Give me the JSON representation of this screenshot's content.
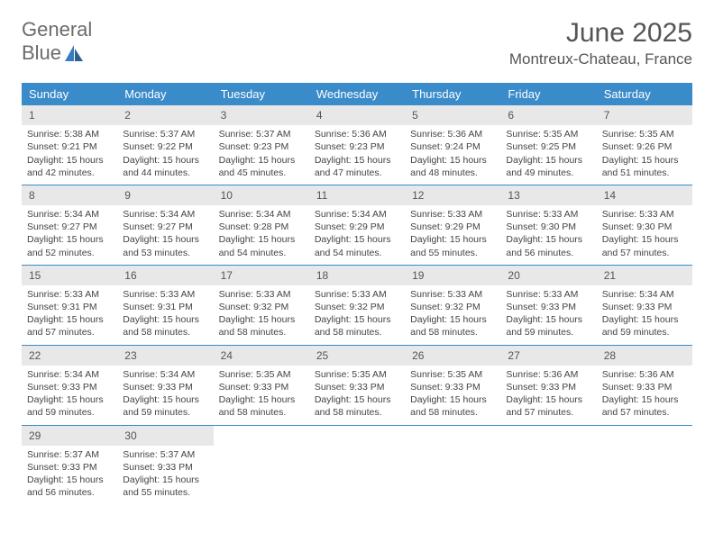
{
  "logo": {
    "text_gray": "General",
    "text_blue": "Blue"
  },
  "title": "June 2025",
  "location": "Montreux-Chateau, France",
  "colors": {
    "header_bg": "#3a8bc9",
    "header_text": "#ffffff",
    "daynum_bg": "#e8e8e8",
    "week_border": "#3a8bc9",
    "body_text": "#444444",
    "title_text": "#555555",
    "logo_gray": "#6b6b6b",
    "logo_blue": "#3a7bbf"
  },
  "daynames": [
    "Sunday",
    "Monday",
    "Tuesday",
    "Wednesday",
    "Thursday",
    "Friday",
    "Saturday"
  ],
  "weeks": [
    [
      {
        "n": "1",
        "sunrise": "5:38 AM",
        "sunset": "9:21 PM",
        "daylight": "15 hours and 42 minutes."
      },
      {
        "n": "2",
        "sunrise": "5:37 AM",
        "sunset": "9:22 PM",
        "daylight": "15 hours and 44 minutes."
      },
      {
        "n": "3",
        "sunrise": "5:37 AM",
        "sunset": "9:23 PM",
        "daylight": "15 hours and 45 minutes."
      },
      {
        "n": "4",
        "sunrise": "5:36 AM",
        "sunset": "9:23 PM",
        "daylight": "15 hours and 47 minutes."
      },
      {
        "n": "5",
        "sunrise": "5:36 AM",
        "sunset": "9:24 PM",
        "daylight": "15 hours and 48 minutes."
      },
      {
        "n": "6",
        "sunrise": "5:35 AM",
        "sunset": "9:25 PM",
        "daylight": "15 hours and 49 minutes."
      },
      {
        "n": "7",
        "sunrise": "5:35 AM",
        "sunset": "9:26 PM",
        "daylight": "15 hours and 51 minutes."
      }
    ],
    [
      {
        "n": "8",
        "sunrise": "5:34 AM",
        "sunset": "9:27 PM",
        "daylight": "15 hours and 52 minutes."
      },
      {
        "n": "9",
        "sunrise": "5:34 AM",
        "sunset": "9:27 PM",
        "daylight": "15 hours and 53 minutes."
      },
      {
        "n": "10",
        "sunrise": "5:34 AM",
        "sunset": "9:28 PM",
        "daylight": "15 hours and 54 minutes."
      },
      {
        "n": "11",
        "sunrise": "5:34 AM",
        "sunset": "9:29 PM",
        "daylight": "15 hours and 54 minutes."
      },
      {
        "n": "12",
        "sunrise": "5:33 AM",
        "sunset": "9:29 PM",
        "daylight": "15 hours and 55 minutes."
      },
      {
        "n": "13",
        "sunrise": "5:33 AM",
        "sunset": "9:30 PM",
        "daylight": "15 hours and 56 minutes."
      },
      {
        "n": "14",
        "sunrise": "5:33 AM",
        "sunset": "9:30 PM",
        "daylight": "15 hours and 57 minutes."
      }
    ],
    [
      {
        "n": "15",
        "sunrise": "5:33 AM",
        "sunset": "9:31 PM",
        "daylight": "15 hours and 57 minutes."
      },
      {
        "n": "16",
        "sunrise": "5:33 AM",
        "sunset": "9:31 PM",
        "daylight": "15 hours and 58 minutes."
      },
      {
        "n": "17",
        "sunrise": "5:33 AM",
        "sunset": "9:32 PM",
        "daylight": "15 hours and 58 minutes."
      },
      {
        "n": "18",
        "sunrise": "5:33 AM",
        "sunset": "9:32 PM",
        "daylight": "15 hours and 58 minutes."
      },
      {
        "n": "19",
        "sunrise": "5:33 AM",
        "sunset": "9:32 PM",
        "daylight": "15 hours and 58 minutes."
      },
      {
        "n": "20",
        "sunrise": "5:33 AM",
        "sunset": "9:33 PM",
        "daylight": "15 hours and 59 minutes."
      },
      {
        "n": "21",
        "sunrise": "5:34 AM",
        "sunset": "9:33 PM",
        "daylight": "15 hours and 59 minutes."
      }
    ],
    [
      {
        "n": "22",
        "sunrise": "5:34 AM",
        "sunset": "9:33 PM",
        "daylight": "15 hours and 59 minutes."
      },
      {
        "n": "23",
        "sunrise": "5:34 AM",
        "sunset": "9:33 PM",
        "daylight": "15 hours and 59 minutes."
      },
      {
        "n": "24",
        "sunrise": "5:35 AM",
        "sunset": "9:33 PM",
        "daylight": "15 hours and 58 minutes."
      },
      {
        "n": "25",
        "sunrise": "5:35 AM",
        "sunset": "9:33 PM",
        "daylight": "15 hours and 58 minutes."
      },
      {
        "n": "26",
        "sunrise": "5:35 AM",
        "sunset": "9:33 PM",
        "daylight": "15 hours and 58 minutes."
      },
      {
        "n": "27",
        "sunrise": "5:36 AM",
        "sunset": "9:33 PM",
        "daylight": "15 hours and 57 minutes."
      },
      {
        "n": "28",
        "sunrise": "5:36 AM",
        "sunset": "9:33 PM",
        "daylight": "15 hours and 57 minutes."
      }
    ],
    [
      {
        "n": "29",
        "sunrise": "5:37 AM",
        "sunset": "9:33 PM",
        "daylight": "15 hours and 56 minutes."
      },
      {
        "n": "30",
        "sunrise": "5:37 AM",
        "sunset": "9:33 PM",
        "daylight": "15 hours and 55 minutes."
      },
      null,
      null,
      null,
      null,
      null
    ]
  ],
  "labels": {
    "sunrise_prefix": "Sunrise: ",
    "sunset_prefix": "Sunset: ",
    "daylight_prefix": "Daylight: "
  }
}
